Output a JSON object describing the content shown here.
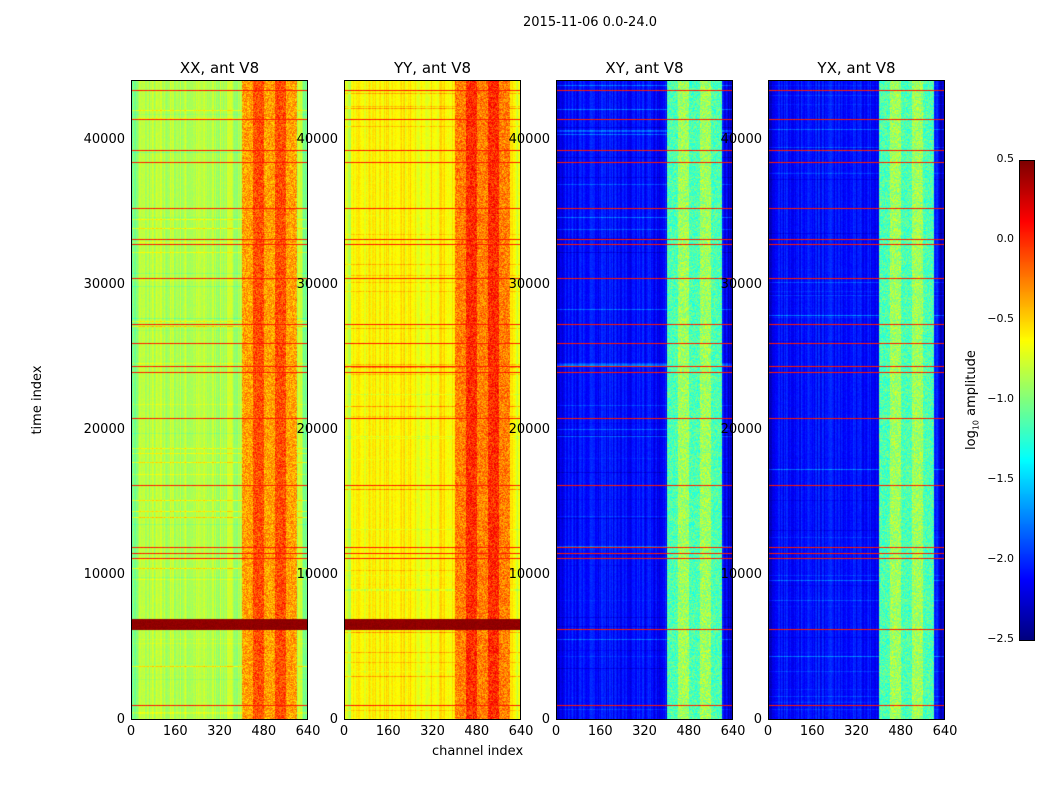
{
  "chart_data": {
    "type": "heatmap",
    "title": "2015-11-06 0.0-24.0",
    "xlabel": "channel index",
    "ylabel": "time index",
    "xlim": [
      0,
      640
    ],
    "ylim": [
      0,
      44100
    ],
    "xticks": [
      0,
      160,
      320,
      480,
      640
    ],
    "yticks": [
      0,
      10000,
      20000,
      30000,
      40000
    ],
    "colormap": "jet",
    "colorbar": {
      "label": "log10 amplitude",
      "label_main": "log",
      "label_sub": "10",
      "label_rest": " amplitude",
      "range": [
        -2.5,
        0.5
      ],
      "ticks": [
        "0.5",
        "0.0",
        "−0.5",
        "−1.0",
        "−1.5",
        "−2.0",
        "−2.5"
      ]
    },
    "panels": [
      {
        "title": "XX, ant V8",
        "base_level": -0.85,
        "band_level": -0.2
      },
      {
        "title": "YY, ant V8",
        "base_level": -0.6,
        "band_level": -0.1
      },
      {
        "title": "XY, ant V8",
        "base_level": -2.1,
        "band_level": -1.0
      },
      {
        "title": "YX, ant V8",
        "base_level": -2.1,
        "band_level": -1.0
      }
    ],
    "high_channel_range": [
      400,
      600
    ],
    "flagged_time_rows": [
      1000,
      6200,
      11100,
      11500,
      11900,
      16200,
      20800,
      24000,
      24400,
      26000,
      27300,
      30500,
      32800,
      33200,
      35300,
      38500,
      39300,
      41500,
      43500
    ]
  }
}
